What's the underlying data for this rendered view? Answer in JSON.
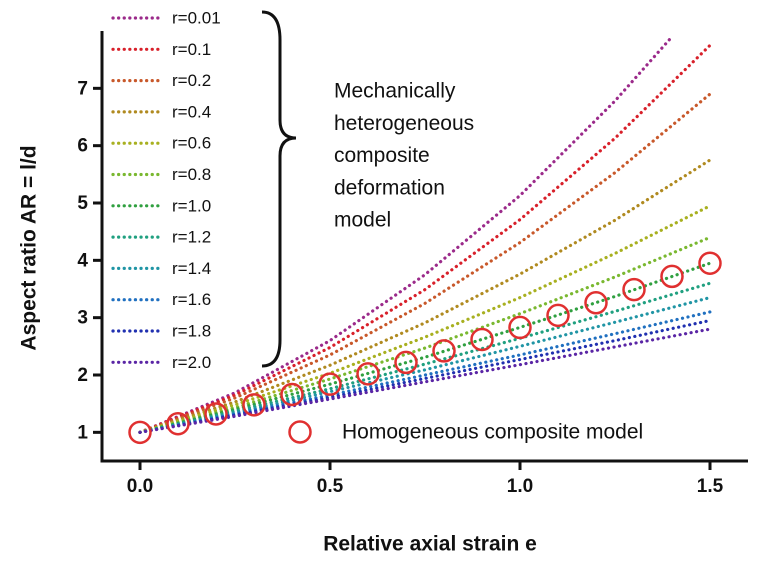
{
  "chart_data": {
    "type": "line",
    "x_label": "Relative axial strain  e",
    "y_label": "Aspect ratio AR = l/d",
    "annotation": [
      "Mechanically",
      "heterogeneous",
      "composite",
      "deformation",
      "model"
    ],
    "xlim": [
      -0.1,
      1.6
    ],
    "ylim": [
      0.5,
      8
    ],
    "xticks": [
      {
        "value": 0,
        "label": "0.0"
      },
      0.5,
      {
        "value": 1,
        "label": "1.0"
      },
      1.5
    ],
    "yticks": [
      1,
      2,
      3,
      4,
      5,
      6,
      7
    ],
    "series": [
      {
        "name": "r=0.01",
        "color": "#9b2a8a",
        "x": [
          0,
          0.25,
          0.5,
          0.75,
          1,
          1.25,
          1.4
        ],
        "values": [
          1,
          1.69,
          2.6,
          3.75,
          5.13,
          6.78,
          7.9
        ]
      },
      {
        "name": "r=0.1",
        "color": "#d8202a",
        "x": [
          0,
          0.25,
          0.5,
          0.75,
          1,
          1.25,
          1.5
        ],
        "values": [
          1,
          1.65,
          2.48,
          3.49,
          4.71,
          6.13,
          7.75
        ]
      },
      {
        "name": "r=0.2",
        "color": "#c8582a",
        "x": [
          0,
          0.25,
          0.5,
          0.75,
          1,
          1.25,
          1.5
        ],
        "values": [
          1,
          1.6,
          2.35,
          3.25,
          4.31,
          5.53,
          6.9
        ]
      },
      {
        "name": "r=0.4",
        "color": "#b08a20",
        "x": [
          0,
          0.25,
          0.5,
          0.75,
          1,
          1.25,
          1.5
        ],
        "values": [
          1,
          1.53,
          2.17,
          2.91,
          3.76,
          4.7,
          5.75
        ]
      },
      {
        "name": "r=0.6",
        "color": "#a8b020",
        "x": [
          0,
          0.25,
          0.5,
          0.75,
          1,
          1.25,
          1.5
        ],
        "values": [
          1,
          1.48,
          2.03,
          2.66,
          3.35,
          4.12,
          4.95
        ]
      },
      {
        "name": "r=0.8",
        "color": "#7ab830",
        "x": [
          0,
          0.25,
          0.5,
          0.75,
          1,
          1.25,
          1.5
        ],
        "values": [
          1,
          1.43,
          1.93,
          2.47,
          3.07,
          3.71,
          4.4
        ]
      },
      {
        "name": "r=1.0",
        "color": "#30a040",
        "x": [
          0,
          0.25,
          0.5,
          0.75,
          1,
          1.25,
          1.5
        ],
        "values": [
          1,
          1.4,
          1.84,
          2.31,
          2.83,
          3.37,
          3.95
        ]
      },
      {
        "name": "r=1.2",
        "color": "#20a080",
        "x": [
          0,
          0.25,
          0.5,
          0.75,
          1,
          1.25,
          1.5
        ],
        "values": [
          1,
          1.37,
          1.76,
          2.19,
          2.64,
          3.11,
          3.6
        ]
      },
      {
        "name": "r=1.4",
        "color": "#2095a5",
        "x": [
          0,
          0.25,
          0.5,
          0.75,
          1,
          1.25,
          1.5
        ],
        "values": [
          1,
          1.34,
          1.71,
          2.09,
          2.5,
          2.92,
          3.35
        ]
      },
      {
        "name": "r=1.6",
        "color": "#2070c0",
        "x": [
          0,
          0.25,
          0.5,
          0.75,
          1,
          1.25,
          1.5
        ],
        "values": [
          1,
          1.32,
          1.65,
          2.0,
          2.35,
          2.72,
          3.1
        ]
      },
      {
        "name": "r=1.8",
        "color": "#2030b0",
        "x": [
          0,
          0.25,
          0.5,
          0.75,
          1,
          1.25,
          1.5
        ],
        "values": [
          1,
          1.3,
          1.61,
          1.94,
          2.27,
          2.6,
          2.95
        ]
      },
      {
        "name": "r=2.0",
        "color": "#5a25a5",
        "x": [
          0,
          0.25,
          0.5,
          0.75,
          1,
          1.25,
          1.5
        ],
        "values": [
          1,
          1.28,
          1.58,
          1.88,
          2.18,
          2.49,
          2.8
        ]
      },
      {
        "name": "Homogeneous composite model",
        "color": "#e03030",
        "marker": "circle",
        "x": [
          0,
          0.1,
          0.2,
          0.3,
          0.4,
          0.5,
          0.6,
          0.7,
          0.8,
          0.9,
          1.0,
          1.1,
          1.2,
          1.3,
          1.4,
          1.5
        ],
        "values": [
          1,
          1.15,
          1.32,
          1.48,
          1.66,
          1.84,
          2.02,
          2.22,
          2.42,
          2.62,
          2.83,
          3.04,
          3.26,
          3.49,
          3.72,
          3.95
        ]
      }
    ]
  }
}
